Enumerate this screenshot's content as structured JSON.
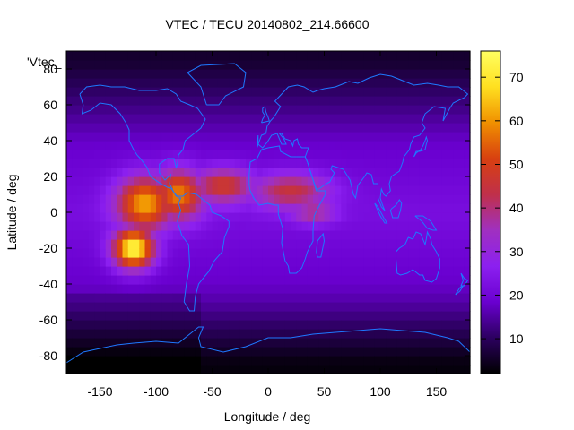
{
  "chart_data": {
    "type": "heatmap",
    "title": "VTEC / TECU 20140802_214.66600",
    "xlabel": "Longitude / deg",
    "ylabel": "Latitude / deg",
    "key_label": "'Vtec_",
    "xlim": [
      -180,
      180
    ],
    "ylim": [
      -90,
      90
    ],
    "xticks": [
      "-150",
      "-100",
      "-50",
      "0",
      "50",
      "100",
      "150"
    ],
    "yticks": [
      "-80",
      "-60",
      "-40",
      "-20",
      "0",
      "20",
      "40",
      "60",
      "80"
    ],
    "colorbar": {
      "range": [
        2,
        76
      ],
      "ticks": [
        "10",
        "20",
        "30",
        "40",
        "50",
        "60",
        "70"
      ]
    },
    "colormap": [
      "#000000",
      "#2c0060",
      "#6a00d0",
      "#8c20f0",
      "#a030c0",
      "#c0304a",
      "#d84010",
      "#f09000",
      "#ffe020",
      "#ffff60"
    ],
    "grid_resolution_deg": 5,
    "features": [
      {
        "lon": -120,
        "lat": -20,
        "value": 74,
        "sigma_lon": 18,
        "sigma_lat": 11
      },
      {
        "lon": -110,
        "lat": 5,
        "value": 62,
        "sigma_lon": 25,
        "sigma_lat": 15
      },
      {
        "lon": -80,
        "lat": 10,
        "value": 58,
        "sigma_lon": 22,
        "sigma_lat": 14
      },
      {
        "lon": -40,
        "lat": 15,
        "value": 48,
        "sigma_lon": 28,
        "sigma_lat": 10
      },
      {
        "lon": 20,
        "lat": 12,
        "value": 45,
        "sigma_lon": 35,
        "sigma_lat": 10
      },
      {
        "lon": 40,
        "lat": 0,
        "value": 40,
        "sigma_lon": 20,
        "sigma_lat": 6
      }
    ],
    "background": {
      "equator": 22,
      "mid_lat": 18,
      "polar": 6
    }
  },
  "coastline_color": "#1e78ff"
}
